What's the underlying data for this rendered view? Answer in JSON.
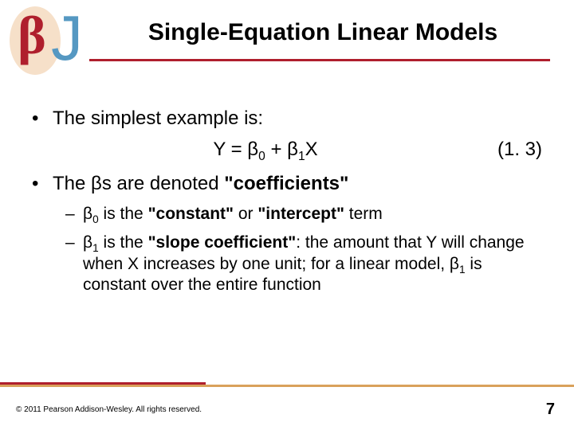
{
  "logo": {
    "beta_glyph": "β",
    "j_glyph": "J",
    "oval_color": "#f6e0c9",
    "beta_color": "#af1f2d",
    "j_color": "#5598c2"
  },
  "title": "Single-Equation Linear Models",
  "title_rule_color": "#af1f2d",
  "bullets": {
    "b1": "The simplest example is:",
    "equation": {
      "lhs": "Y = β",
      "sub0": "0",
      "mid": " + β",
      "sub1": "1",
      "rhs": "X",
      "number": "(1. 3)"
    },
    "b2_pre": "The βs are denoted ",
    "b2_bold": "\"coefficients\"",
    "sub_a": {
      "pre": "β",
      "sub": "0",
      "mid": " is the ",
      "bold": "\"constant\"",
      "mid2": " or ",
      "bold2": "\"intercept\"",
      "post": " term"
    },
    "sub_b": {
      "pre": "β",
      "sub": "1",
      "mid": " is the ",
      "bold": "\"slope coefficient\"",
      "post1": ": the amount that Y will change when X increases by one unit; for a linear model, β",
      "sub2": "1",
      "post2": " is constant over the entire function"
    }
  },
  "footer": {
    "outer_rule_color": "#d9a15b",
    "inner_rule_color": "#af1f2d",
    "copyright": "© 2011 Pearson Addison-Wesley. All rights reserved.",
    "page": "7"
  }
}
